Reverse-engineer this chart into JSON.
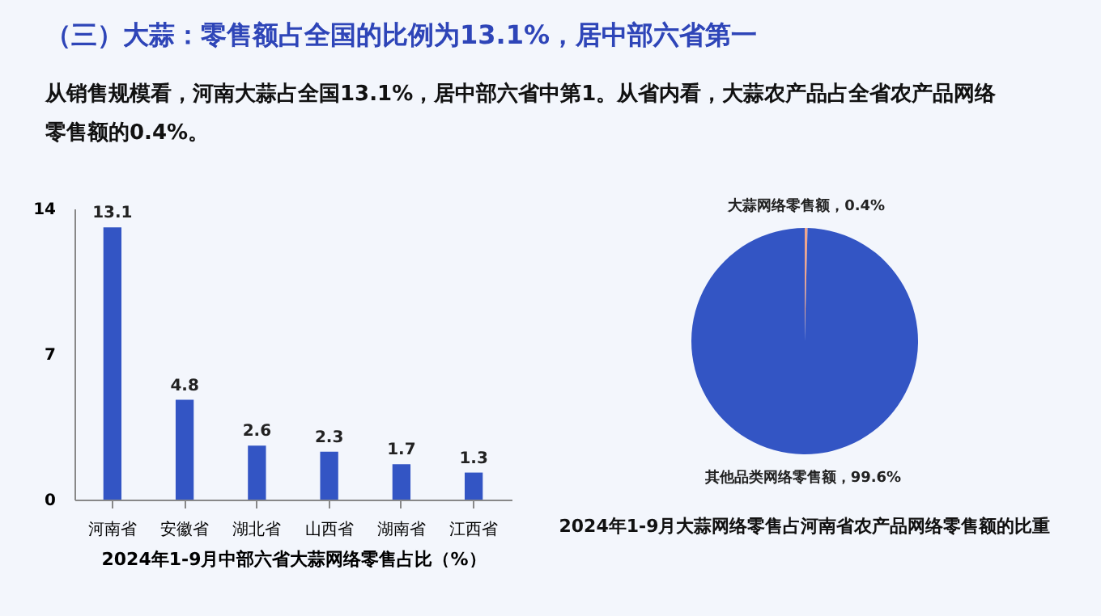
{
  "chart_data": [
    {
      "type": "other",
      "title": "（三）大蒜：零售额占全国的比例为13.1%，居中部六省第一",
      "subtitle": "从销售规模看，河南大蒜占全国13.1%，居中部六省中第1。从省内看，大蒜农产品占全省农产品网络零售额的0.4%。"
    },
    {
      "type": "bar",
      "categories": [
        "河南省",
        "安徽省",
        "湖北省",
        "山西省",
        "湖南省",
        "江西省"
      ],
      "values": [
        13.1,
        4.8,
        2.6,
        2.3,
        1.7,
        1.3
      ],
      "color": "#3355c4",
      "ylim": [
        0,
        14
      ],
      "yticks": [
        0,
        7,
        14
      ],
      "grid": false,
      "data_labels": true,
      "xlabel": "2024年1-9月中部六省大蒜网络零售占比（%）"
    },
    {
      "type": "pie",
      "categories": [
        "大蒜网络零售额",
        "其他品类网络零售额"
      ],
      "values": [
        0.4,
        99.6
      ],
      "colors": [
        "#f0a58c",
        "#3355c4"
      ],
      "value_labels": [
        "0.4%",
        "99.6%"
      ],
      "title": "2024年1-9月大蒜网络零售占河南省农产品网络零售额的比重"
    }
  ]
}
